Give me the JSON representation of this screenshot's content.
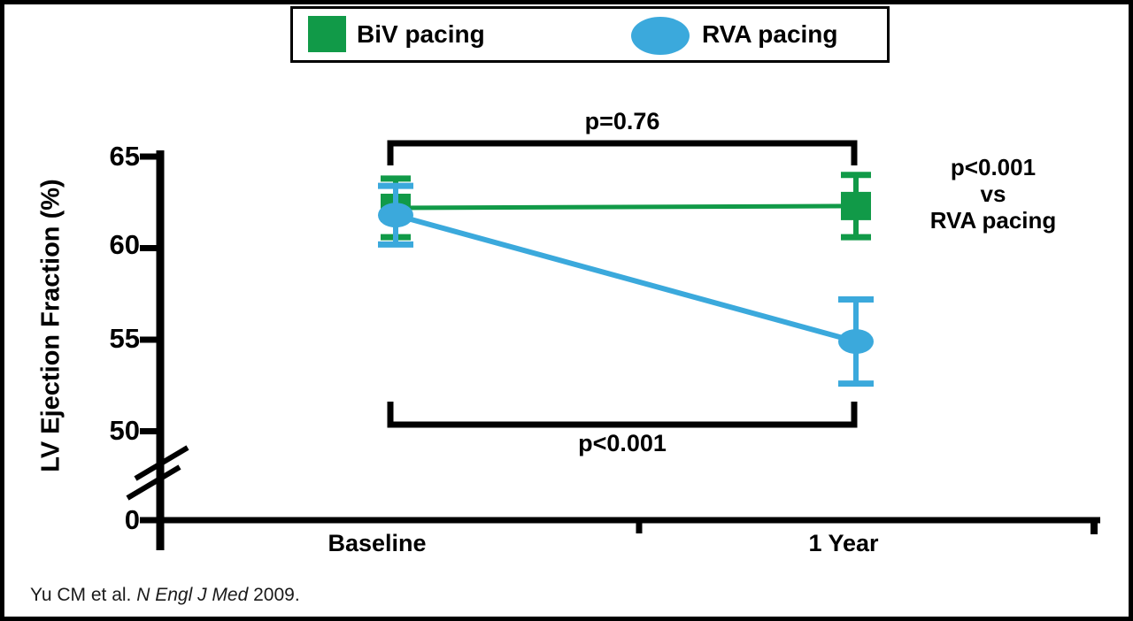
{
  "legend": {
    "items": [
      {
        "label": "BiV pacing",
        "marker": "square",
        "color": "#119A48"
      },
      {
        "label": "RVA pacing",
        "marker": "ellipse",
        "color": "#3BA9DC"
      }
    ]
  },
  "citation": {
    "prefix": "Yu CM et al. ",
    "journal": "N Engl J Med",
    "suffix": " 2009."
  },
  "chart_data": {
    "type": "line",
    "title": "",
    "xlabel": "",
    "ylabel": "LV Ejection Fraction (%)",
    "categories": [
      "Baseline",
      "1 Year"
    ],
    "yticks": [
      65,
      60,
      55,
      50,
      0
    ],
    "ylim": [
      0,
      65
    ],
    "axis_break_between": [
      0,
      50
    ],
    "grid": false,
    "legend_position": "top-center",
    "series": [
      {
        "name": "BiV pacing",
        "marker": "square",
        "color": "#119A48",
        "values": [
          62.2,
          62.3
        ],
        "error": [
          1.6,
          1.7
        ]
      },
      {
        "name": "RVA pacing",
        "marker": "circle",
        "color": "#3BA9DC",
        "values": [
          61.8,
          54.9
        ],
        "error": [
          1.6,
          2.3
        ]
      }
    ],
    "annotations": {
      "top_bracket": "p=0.76",
      "bottom_bracket": "p<0.001",
      "right_note": [
        "p<0.001",
        "vs",
        "RVA pacing"
      ]
    }
  }
}
